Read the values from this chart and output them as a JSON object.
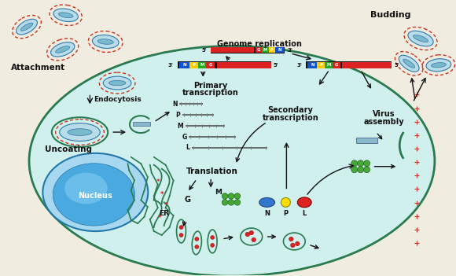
{
  "outside_bg": "#f0ece0",
  "cell_fill": "#d0f0ee",
  "cell_border": "#2a7a50",
  "nucleus_fill_inner": "#5bbcee",
  "nucleus_fill_outer": "#3a9acc",
  "nucleus_border": "#2277aa",
  "virus_body": "#b8dce8",
  "virus_border": "#3377aa",
  "virus_inner": "#7ab8cc",
  "virus_spike": "#cc3322",
  "genome_seg": {
    "N": "#1155cc",
    "P": "#ffcc00",
    "M": "#22aa22",
    "G": "#dd2222",
    "black": "#222222"
  },
  "er_color": "#2a7a50",
  "arrow_color": "#111111",
  "text_color": "#111111",
  "green_dot": "#44aa33",
  "blue_oval": "#3377cc",
  "yellow_dot": "#ffdd00",
  "red_dot": "#dd2222",
  "mrna_color": "#888888",
  "labels": {
    "attachment": "Attachment",
    "endocytosis": "Endocytosis",
    "uncoating": "Uncoating",
    "primary_tr": "Primary\ntranscription",
    "genome_rep": "Genome replication",
    "secondary_tr": "Secondary\ntranscription",
    "translation": "Translation",
    "virus_assembly": "Virus\nassembly",
    "budding": "Budding",
    "nucleus": "Nucleus",
    "er": "ER",
    "G": "G",
    "M": "M",
    "N": "N",
    "P": "P",
    "L": "L"
  }
}
